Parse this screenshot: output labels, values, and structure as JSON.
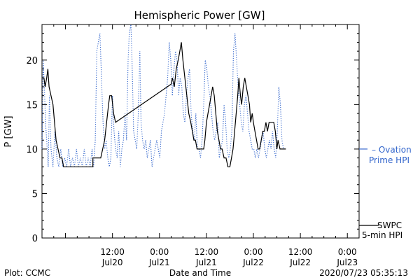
{
  "chart_data": {
    "type": "line",
    "title": "Hemispheric Power [GW]",
    "ylabel": "P [GW]",
    "xlabel": "Date and Time",
    "ylim": [
      0,
      24
    ],
    "yticks": [
      0,
      5,
      10,
      15,
      20
    ],
    "xlim_hours": [
      -6,
      75
    ],
    "xticks": [
      {
        "hour": 12,
        "time": "12:00",
        "date": "Jul20"
      },
      {
        "hour": 24,
        "time": "0:00",
        "date": "Jul21"
      },
      {
        "hour": 36,
        "time": "12:00",
        "date": "Jul21"
      },
      {
        "hour": 48,
        "time": "0:00",
        "date": "Jul22"
      },
      {
        "hour": 60,
        "time": "12:00",
        "date": "Jul22"
      },
      {
        "hour": 72,
        "time": "0:00",
        "date": "Jul23"
      }
    ],
    "series": [
      {
        "name": "SWPC 5-min HPI",
        "label_line1": "SWPC",
        "label_line2": "5-min HPI",
        "style": "solid",
        "color": "#000000",
        "points": [
          [
            -6,
            18
          ],
          [
            -5.5,
            18
          ],
          [
            -5.2,
            17
          ],
          [
            -4.8,
            18
          ],
          [
            -4.5,
            19
          ],
          [
            -4.2,
            17
          ],
          [
            -3.7,
            16
          ],
          [
            -3.2,
            15
          ],
          [
            -2.8,
            13
          ],
          [
            -2.4,
            11
          ],
          [
            -1.9,
            10
          ],
          [
            -1.4,
            9
          ],
          [
            -0.9,
            9
          ],
          [
            -0.5,
            8
          ],
          [
            3,
            8
          ],
          [
            7,
            8
          ],
          [
            7,
            9
          ],
          [
            9,
            9
          ],
          [
            9.5,
            10
          ],
          [
            10,
            11
          ],
          [
            10.5,
            13
          ],
          [
            11,
            15
          ],
          [
            11.3,
            16
          ],
          [
            11.8,
            16
          ],
          [
            12.3,
            14
          ],
          [
            12.8,
            13
          ],
          [
            26,
            17
          ],
          [
            27,
            17.3
          ],
          [
            27.3,
            18
          ],
          [
            27.8,
            17
          ],
          [
            28.3,
            19
          ],
          [
            28.8,
            20
          ],
          [
            29.2,
            21
          ],
          [
            29.6,
            22
          ],
          [
            30,
            20
          ],
          [
            30.5,
            18
          ],
          [
            31,
            16
          ],
          [
            31.5,
            14
          ],
          [
            32,
            13
          ],
          [
            32.4,
            12
          ],
          [
            32.8,
            11
          ],
          [
            33.2,
            11
          ],
          [
            33.6,
            10
          ],
          [
            35.3,
            10
          ],
          [
            35.6,
            11
          ],
          [
            36,
            13
          ],
          [
            36.4,
            14
          ],
          [
            36.8,
            15
          ],
          [
            37.2,
            16
          ],
          [
            37.6,
            17
          ],
          [
            38,
            16
          ],
          [
            38.4,
            14
          ],
          [
            38.8,
            12
          ],
          [
            39.2,
            11
          ],
          [
            39.6,
            10
          ],
          [
            40,
            10
          ],
          [
            40.5,
            9
          ],
          [
            41,
            9
          ],
          [
            41.5,
            8
          ],
          [
            42,
            8
          ],
          [
            42.4,
            9
          ],
          [
            42.8,
            10
          ],
          [
            43.2,
            12
          ],
          [
            43.6,
            14
          ],
          [
            44,
            16
          ],
          [
            44.3,
            18
          ],
          [
            44.7,
            16
          ],
          [
            45,
            15
          ],
          [
            45.4,
            17
          ],
          [
            45.8,
            18
          ],
          [
            46.2,
            17
          ],
          [
            46.6,
            16
          ],
          [
            47,
            15
          ],
          [
            47.3,
            13
          ],
          [
            47.7,
            14
          ],
          [
            48,
            13
          ],
          [
            48.4,
            12
          ],
          [
            48.8,
            11
          ],
          [
            49.2,
            10
          ],
          [
            49.6,
            10
          ],
          [
            50,
            11
          ],
          [
            50.4,
            12
          ],
          [
            50.8,
            12
          ],
          [
            51.2,
            13
          ],
          [
            51.6,
            12
          ],
          [
            52,
            13
          ],
          [
            53.2,
            13
          ],
          [
            53.6,
            12
          ],
          [
            54,
            10
          ],
          [
            54.3,
            11
          ],
          [
            54.8,
            10
          ],
          [
            56.3,
            10
          ]
        ]
      },
      {
        "name": "Ovation Prime HPI",
        "label_line1": "Ovation",
        "label_line2": "Prime HPI",
        "style": "dotted",
        "color": "#3366cc",
        "points": [
          [
            -6,
            10
          ],
          [
            -5.7,
            20
          ],
          [
            -5.4,
            17
          ],
          [
            -5.1,
            13
          ],
          [
            -4.8,
            11
          ],
          [
            -4.4,
            8
          ],
          [
            -4.1,
            16
          ],
          [
            -3.7,
            10
          ],
          [
            -3.2,
            8
          ],
          [
            -2.7,
            12
          ],
          [
            -2.2,
            9
          ],
          [
            -1.7,
            8
          ],
          [
            -1.2,
            10
          ],
          [
            -0.7,
            8
          ],
          [
            -0.2,
            9
          ],
          [
            0.3,
            8
          ],
          [
            0.8,
            10
          ],
          [
            1.3,
            8
          ],
          [
            1.8,
            9
          ],
          [
            2.3,
            8
          ],
          [
            2.8,
            10
          ],
          [
            3.3,
            8
          ],
          [
            3.8,
            9
          ],
          [
            4.3,
            8
          ],
          [
            4.8,
            10
          ],
          [
            5.3,
            8
          ],
          [
            5.8,
            9
          ],
          [
            6.3,
            8
          ],
          [
            6.8,
            10
          ],
          [
            7.2,
            8
          ],
          [
            7.6,
            11
          ],
          [
            8,
            21
          ],
          [
            8.4,
            22
          ],
          [
            8.8,
            23
          ],
          [
            9.2,
            18
          ],
          [
            9.6,
            13
          ],
          [
            10,
            10
          ],
          [
            10.4,
            11
          ],
          [
            10.8,
            9
          ],
          [
            11.2,
            8
          ],
          [
            11.6,
            9
          ],
          [
            12,
            16
          ],
          [
            12.4,
            12
          ],
          [
            12.8,
            10
          ],
          [
            13.2,
            9
          ],
          [
            13.6,
            12
          ],
          [
            14,
            8
          ],
          [
            14.4,
            10
          ],
          [
            14.8,
            11
          ],
          [
            15.2,
            14
          ],
          [
            15.6,
            11
          ],
          [
            16,
            20
          ],
          [
            16.3,
            23
          ],
          [
            16.7,
            24
          ],
          [
            17,
            20
          ],
          [
            17.4,
            12
          ],
          [
            17.8,
            11
          ],
          [
            18.2,
            10
          ],
          [
            18.6,
            14
          ],
          [
            19,
            21
          ],
          [
            19.3,
            13
          ],
          [
            19.7,
            11
          ],
          [
            20.1,
            10
          ],
          [
            20.5,
            11
          ],
          [
            20.9,
            9
          ],
          [
            21.3,
            10
          ],
          [
            21.7,
            11
          ],
          [
            22.1,
            8
          ],
          [
            22.5,
            9
          ],
          [
            22.9,
            10
          ],
          [
            23.3,
            11
          ],
          [
            23.7,
            10
          ],
          [
            24.1,
            9
          ],
          [
            24.5,
            12
          ],
          [
            24.9,
            13
          ],
          [
            25.3,
            14
          ],
          [
            25.7,
            16
          ],
          [
            26.1,
            18
          ],
          [
            26.5,
            22
          ],
          [
            26.9,
            20
          ],
          [
            27.3,
            16
          ],
          [
            27.7,
            19
          ],
          [
            28.1,
            21
          ],
          [
            28.5,
            20
          ],
          [
            28.9,
            16
          ],
          [
            29.3,
            18
          ],
          [
            29.7,
            17
          ],
          [
            30.1,
            14
          ],
          [
            30.5,
            13
          ],
          [
            30.9,
            16
          ],
          [
            31.3,
            18
          ],
          [
            31.7,
            19
          ],
          [
            32.1,
            14
          ],
          [
            32.5,
            12
          ],
          [
            32.9,
            11
          ],
          [
            33.3,
            14
          ],
          [
            33.7,
            10
          ],
          [
            34.1,
            10
          ],
          [
            34.5,
            9
          ],
          [
            34.9,
            11
          ],
          [
            35.3,
            15
          ],
          [
            35.7,
            20
          ],
          [
            36.1,
            19
          ],
          [
            36.5,
            17
          ],
          [
            36.9,
            16
          ],
          [
            37.3,
            14
          ],
          [
            37.7,
            12
          ],
          [
            38.1,
            11
          ],
          [
            38.5,
            12
          ],
          [
            38.9,
            13
          ],
          [
            39.3,
            9
          ],
          [
            39.7,
            10
          ],
          [
            40.1,
            11
          ],
          [
            40.5,
            15
          ],
          [
            40.9,
            13
          ],
          [
            41.3,
            10
          ],
          [
            41.7,
            9
          ],
          [
            42.1,
            10
          ],
          [
            42.5,
            12
          ],
          [
            42.9,
            21
          ],
          [
            43.3,
            23
          ],
          [
            43.7,
            20
          ],
          [
            44.1,
            17
          ],
          [
            44.5,
            15
          ],
          [
            44.9,
            13
          ],
          [
            45.3,
            12
          ],
          [
            45.7,
            15
          ],
          [
            46.1,
            16
          ],
          [
            46.5,
            14
          ],
          [
            46.9,
            12
          ],
          [
            47.3,
            11
          ],
          [
            47.7,
            10
          ],
          [
            48.1,
            10
          ],
          [
            48.5,
            9
          ],
          [
            48.9,
            10
          ],
          [
            49.3,
            9
          ],
          [
            49.7,
            10
          ],
          [
            50.1,
            11
          ],
          [
            50.5,
            12
          ],
          [
            50.9,
            10
          ],
          [
            51.3,
            9
          ],
          [
            51.7,
            10
          ],
          [
            52.1,
            11
          ],
          [
            52.5,
            10
          ],
          [
            52.9,
            12
          ],
          [
            53.3,
            10
          ],
          [
            53.7,
            9
          ],
          [
            54.1,
            12
          ],
          [
            54.5,
            17
          ],
          [
            54.9,
            15
          ],
          [
            55.3,
            11
          ],
          [
            55.7,
            10
          ],
          [
            56.3,
            10
          ]
        ]
      }
    ],
    "annotation_left": "Plot: CCMC",
    "timestamp": "2020/07/23 05:35:13"
  }
}
